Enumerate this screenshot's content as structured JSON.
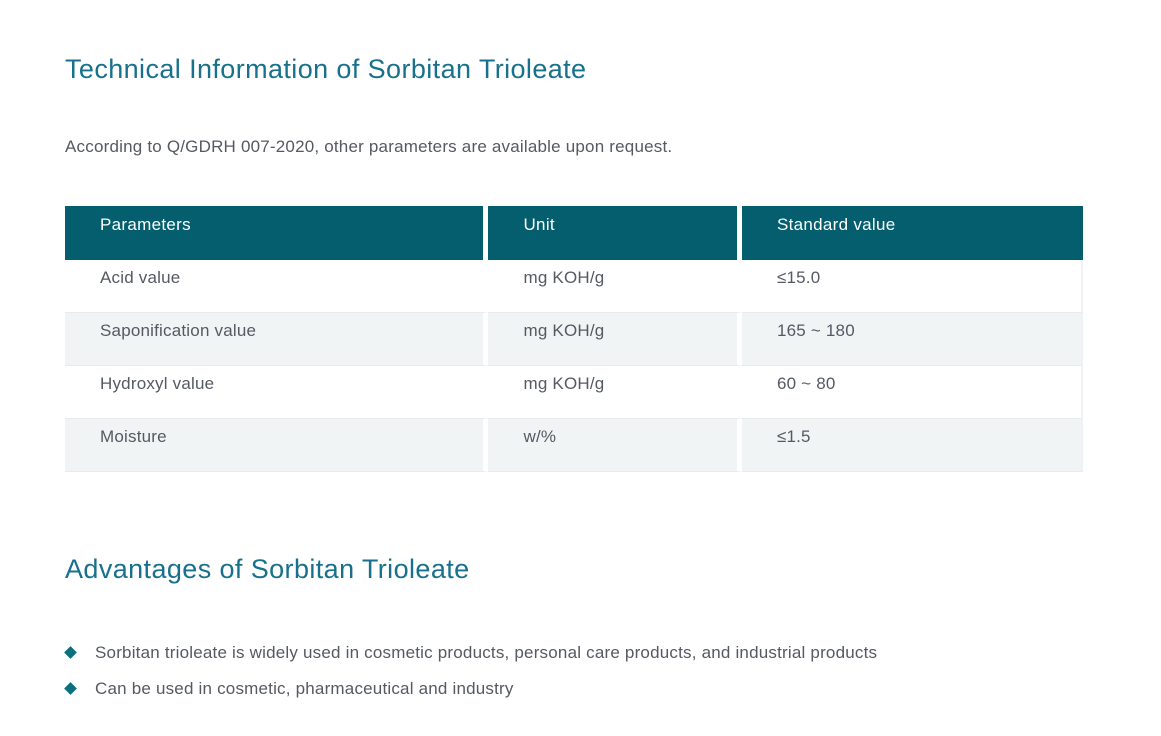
{
  "theme": {
    "heading_color": "#17718c",
    "table_header_bg": "#045e6e",
    "table_header_text": "#ffffff",
    "row_alt_bg": "#f1f4f5",
    "body_text_color": "#555962",
    "bullet_color": "#0b6f7e",
    "page_bg": "#ffffff"
  },
  "technical_section": {
    "title": "Technical Information of Sorbitan Trioleate",
    "intro": "According to Q/GDRH 007-2020, other parameters are available upon request."
  },
  "table": {
    "headers": [
      "Parameters",
      "Unit",
      "Standard value"
    ],
    "rows": [
      [
        "Acid value",
        "mg KOH/g",
        "≤15.0"
      ],
      [
        "Saponification value",
        "mg KOH/g",
        "165 ~ 180"
      ],
      [
        "Hydroxyl value",
        "mg KOH/g",
        "60 ~ 80"
      ],
      [
        "Moisture",
        "w/%",
        "≤1.5"
      ]
    ]
  },
  "advantages_section": {
    "title": "Advantages of Sorbitan Trioleate",
    "bullets": [
      "Sorbitan trioleate is widely used in cosmetic products, personal care products, and industrial products",
      "Can be used in cosmetic, pharmaceutical and industry"
    ]
  }
}
